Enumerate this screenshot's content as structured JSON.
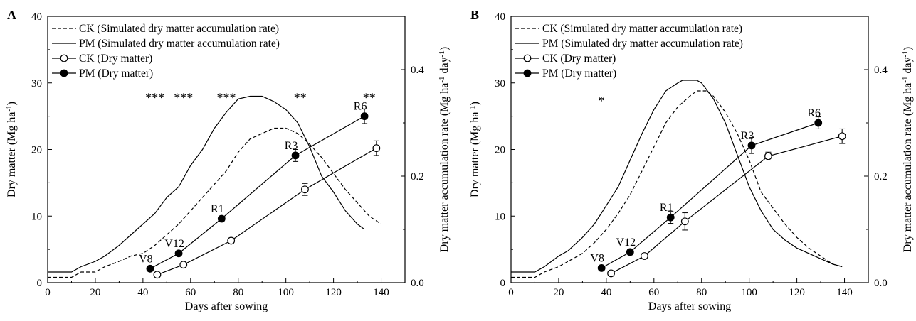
{
  "chart_data": [
    {
      "panel_label": "A",
      "type": "line",
      "xlabel": "Days after sowing",
      "ylabel": "Dry matter (Mg ha⁻¹)",
      "y2label": "Dry matter accumulation rate (Mg ha⁻¹ day⁻¹)",
      "xlim": [
        0,
        150
      ],
      "ylim": [
        0,
        40
      ],
      "y2lim": [
        0,
        0.5
      ],
      "xticks": [
        "0",
        "20",
        "40",
        "60",
        "80",
        "100",
        "120",
        "140"
      ],
      "xtick_values": [
        0,
        20,
        40,
        60,
        80,
        100,
        120,
        140
      ],
      "yticks": [
        "0",
        "10",
        "20",
        "30",
        "40"
      ],
      "ytick_values": [
        0,
        10,
        20,
        30,
        40
      ],
      "y2ticks": [
        "0.0",
        "0.2",
        "0.4"
      ],
      "y2tick_values": [
        0,
        0.2,
        0.4
      ],
      "legend": [
        {
          "label": "CK (Simulated dry matter accumulation rate)",
          "style": "dashed"
        },
        {
          "label": "PM (Simulated dry matter accumulation rate)",
          "style": "solid"
        },
        {
          "label": "CK (Dry matter)",
          "style": "open"
        },
        {
          "label": "PM (Dry matter)",
          "style": "filled"
        }
      ],
      "legend_position": "top-left",
      "series": [
        {
          "name": "CK (Simulated dry matter accumulation rate)",
          "axis": "right",
          "style": "dashed",
          "x": [
            0,
            10,
            14,
            20,
            24,
            30,
            35,
            40,
            45,
            50,
            55,
            60,
            65,
            70,
            75,
            80,
            85,
            90,
            95,
            100,
            105,
            110,
            115,
            120,
            125,
            130,
            135,
            140
          ],
          "y": [
            0.01,
            0.01,
            0.02,
            0.02,
            0.03,
            0.04,
            0.05,
            0.055,
            0.07,
            0.09,
            0.11,
            0.135,
            0.16,
            0.185,
            0.21,
            0.245,
            0.27,
            0.28,
            0.29,
            0.29,
            0.28,
            0.26,
            0.235,
            0.205,
            0.175,
            0.15,
            0.125,
            0.11
          ]
        },
        {
          "name": "PM (Simulated dry matter accumulation rate)",
          "axis": "right",
          "style": "solid",
          "x": [
            0,
            10,
            14,
            20,
            24,
            30,
            35,
            40,
            45,
            50,
            55,
            60,
            65,
            70,
            75,
            80,
            85,
            90,
            95,
            100,
            105,
            110,
            115,
            120,
            125,
            130,
            133
          ],
          "y": [
            0.02,
            0.02,
            0.03,
            0.04,
            0.05,
            0.07,
            0.09,
            0.11,
            0.13,
            0.16,
            0.18,
            0.22,
            0.25,
            0.29,
            0.32,
            0.345,
            0.35,
            0.35,
            0.34,
            0.325,
            0.3,
            0.255,
            0.2,
            0.17,
            0.135,
            0.11,
            0.1
          ]
        },
        {
          "name": "CK (Dry matter)",
          "axis": "left",
          "style": "open",
          "x": [
            46,
            57,
            77,
            108,
            138
          ],
          "y": [
            1.2,
            2.7,
            6.3,
            14.0,
            20.2
          ],
          "err": [
            0.2,
            0.3,
            0.4,
            0.9,
            1.1
          ]
        },
        {
          "name": "PM (Dry matter)",
          "axis": "left",
          "style": "filled",
          "x": [
            43,
            55,
            73,
            104,
            133
          ],
          "y": [
            2.1,
            4.4,
            9.6,
            19.1,
            25.0
          ],
          "err": [
            0.2,
            0.3,
            0.4,
            0.9,
            1.1
          ]
        }
      ],
      "stage_labels": [
        {
          "text": "V8",
          "x": 43,
          "y": 2.1
        },
        {
          "text": "V12",
          "x": 55,
          "y": 4.4
        },
        {
          "text": "R1",
          "x": 73,
          "y": 9.6
        },
        {
          "text": "R3",
          "x": 104,
          "y": 19.1
        },
        {
          "text": "R6",
          "x": 133,
          "y": 25.0
        }
      ],
      "significance": [
        {
          "text": "***",
          "x": 45,
          "y": 28
        },
        {
          "text": "***",
          "x": 57,
          "y": 28
        },
        {
          "text": "***",
          "x": 75,
          "y": 28
        },
        {
          "text": "**",
          "x": 106,
          "y": 28
        },
        {
          "text": "**",
          "x": 135,
          "y": 28
        }
      ]
    },
    {
      "panel_label": "B",
      "type": "line",
      "xlabel": "Days after sowing",
      "ylabel": "Dry matter (Mg ha⁻¹)",
      "y2label": "Dry matter accumulation rate (Mg ha⁻¹ day⁻¹)",
      "xlim": [
        0,
        150
      ],
      "ylim": [
        0,
        40
      ],
      "y2lim": [
        0,
        0.5
      ],
      "xticks": [
        "0",
        "20",
        "40",
        "60",
        "80",
        "100",
        "120",
        "140"
      ],
      "xtick_values": [
        0,
        20,
        40,
        60,
        80,
        100,
        120,
        140
      ],
      "yticks": [
        "0",
        "10",
        "20",
        "30",
        "40"
      ],
      "ytick_values": [
        0,
        10,
        20,
        30,
        40
      ],
      "y2ticks": [
        "0.0",
        "0.2",
        "0.4"
      ],
      "y2tick_values": [
        0,
        0.2,
        0.4
      ],
      "legend": [
        {
          "label": "CK (Simulated dry matter accumulation rate)",
          "style": "dashed"
        },
        {
          "label": "PM (Simulated dry matter accumulation rate)",
          "style": "solid"
        },
        {
          "label": "CK (Dry matter)",
          "style": "open"
        },
        {
          "label": "PM (Dry matter)",
          "style": "filled"
        }
      ],
      "legend_position": "top-left",
      "series": [
        {
          "name": "CK (Simulated dry matter accumulation rate)",
          "axis": "right",
          "style": "dashed",
          "x": [
            0,
            10,
            14,
            20,
            24,
            30,
            35,
            40,
            45,
            50,
            55,
            60,
            65,
            70,
            75,
            78,
            82,
            85,
            90,
            95,
            100,
            105,
            110,
            115,
            120,
            125,
            130,
            135,
            139
          ],
          "y": [
            0.01,
            0.01,
            0.02,
            0.03,
            0.04,
            0.055,
            0.075,
            0.1,
            0.13,
            0.165,
            0.21,
            0.255,
            0.3,
            0.33,
            0.35,
            0.36,
            0.36,
            0.35,
            0.32,
            0.28,
            0.23,
            0.17,
            0.14,
            0.11,
            0.085,
            0.065,
            0.05,
            0.035,
            0.03
          ]
        },
        {
          "name": "PM (Simulated dry matter accumulation rate)",
          "axis": "right",
          "style": "solid",
          "x": [
            0,
            10,
            14,
            20,
            24,
            30,
            35,
            40,
            45,
            50,
            55,
            60,
            65,
            70,
            72,
            78,
            80,
            85,
            90,
            95,
            100,
            105,
            110,
            115,
            120,
            125,
            130,
            135,
            139
          ],
          "y": [
            0.02,
            0.02,
            0.03,
            0.05,
            0.06,
            0.085,
            0.11,
            0.145,
            0.18,
            0.23,
            0.28,
            0.325,
            0.36,
            0.375,
            0.38,
            0.38,
            0.375,
            0.345,
            0.3,
            0.24,
            0.18,
            0.135,
            0.1,
            0.08,
            0.065,
            0.055,
            0.045,
            0.035,
            0.03
          ]
        },
        {
          "name": "CK (Dry matter)",
          "axis": "left",
          "style": "open",
          "x": [
            42,
            56,
            73,
            108,
            139
          ],
          "y": [
            1.4,
            4.0,
            9.2,
            19.0,
            22.0
          ],
          "err": [
            0.2,
            0.3,
            1.3,
            0.6,
            1.1
          ]
        },
        {
          "name": "PM (Dry matter)",
          "axis": "left",
          "style": "filled",
          "x": [
            38,
            50,
            67,
            101,
            129
          ],
          "y": [
            2.2,
            4.6,
            9.8,
            20.6,
            24.0
          ],
          "err": [
            0.2,
            0.4,
            0.9,
            1.2,
            0.9
          ]
        }
      ],
      "stage_labels": [
        {
          "text": "V8",
          "x": 38,
          "y": 2.2
        },
        {
          "text": "V12",
          "x": 50,
          "y": 4.6
        },
        {
          "text": "R1",
          "x": 67,
          "y": 9.8
        },
        {
          "text": "R3",
          "x": 101,
          "y": 20.6
        },
        {
          "text": "R6",
          "x": 129,
          "y": 24.0
        }
      ],
      "significance": [
        {
          "text": "*",
          "x": 38,
          "y": 27.5
        }
      ]
    }
  ]
}
